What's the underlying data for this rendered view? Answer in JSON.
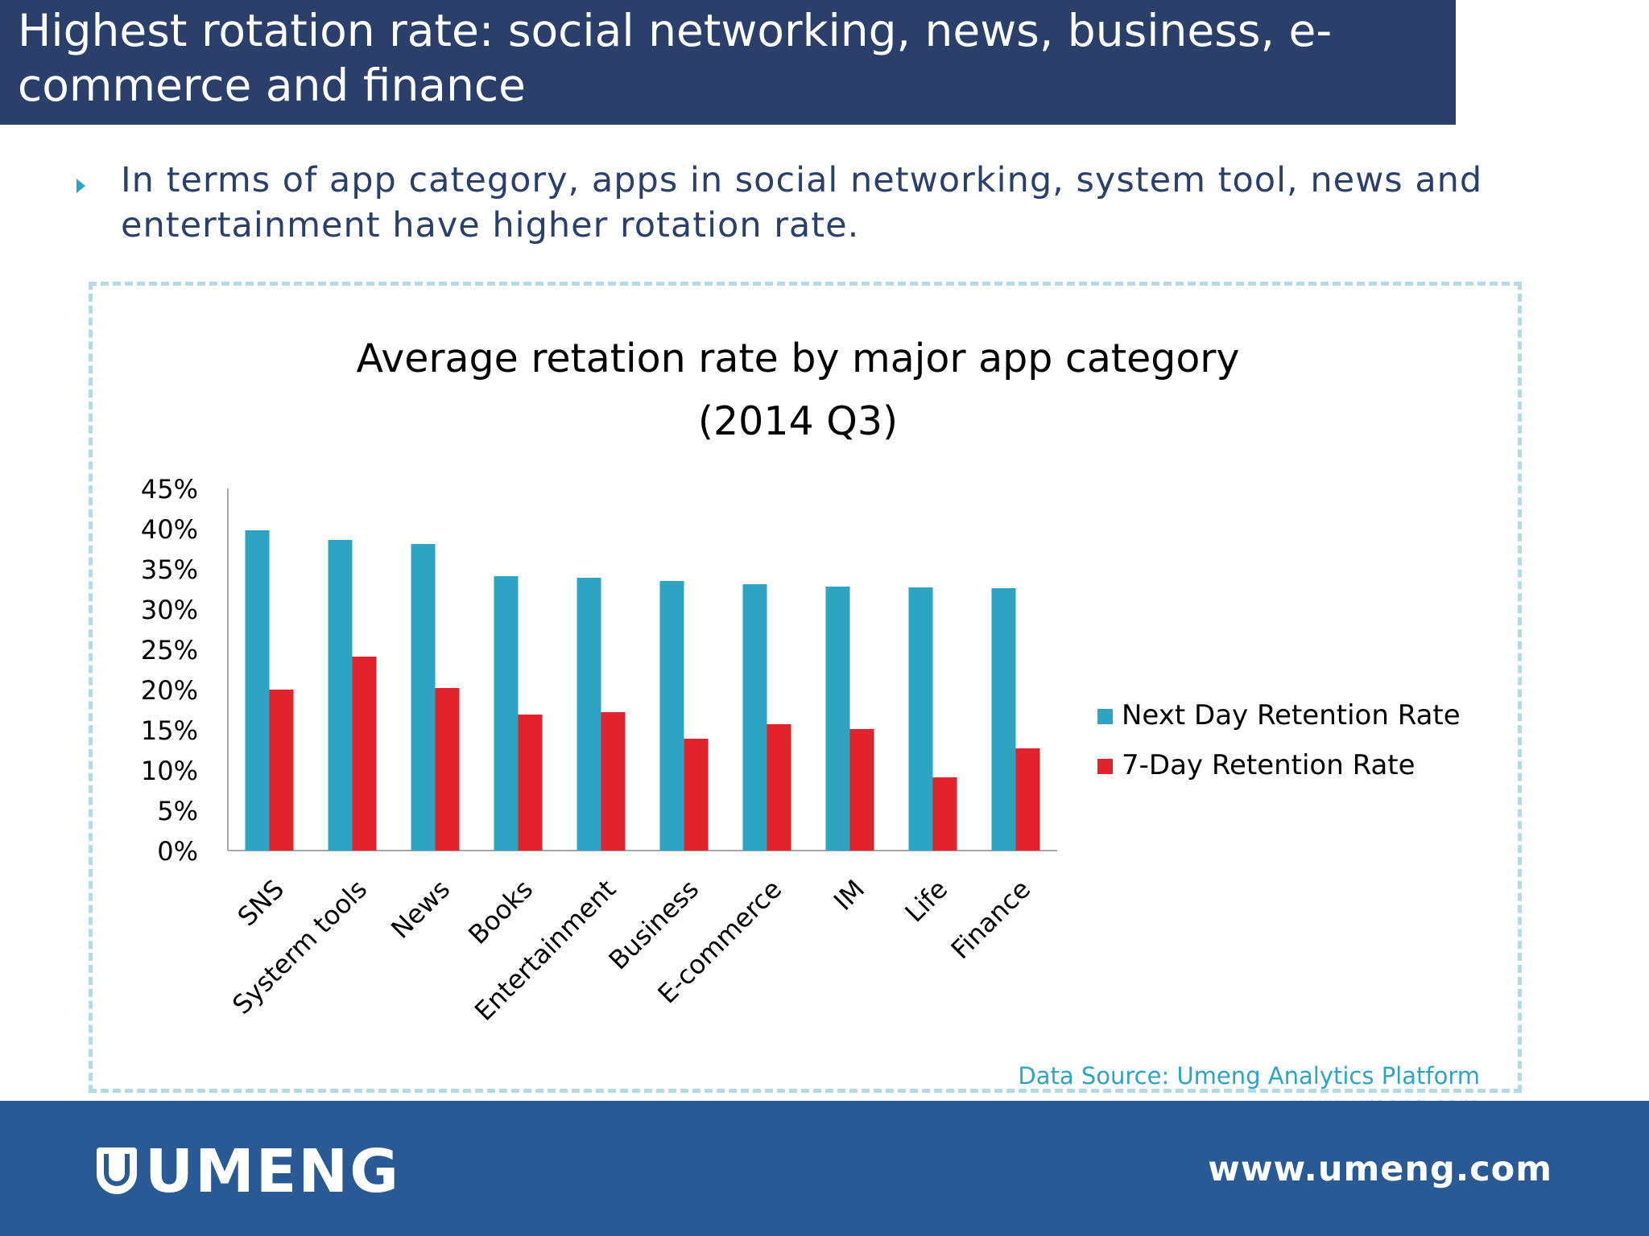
{
  "slide": {
    "title": "Highest rotation rate: social networking, news, business, e-commerce and finance",
    "bullet": "In terms of app category, apps in social networking, system tool, news and entertainment have higher rotation rate."
  },
  "source": {
    "line1": "Data Source: Umeng Analytics Platform",
    "line2": "www.umeng.com"
  },
  "footer": {
    "logo": "UMENG",
    "url": "www.umeng.com"
  },
  "colors": {
    "title_bar": "#2a3f6a",
    "footer_bar": "#2a5a96",
    "next_day": "#2fa4c2",
    "seven_day": "#e0232d",
    "frame": "#b2dbe7"
  },
  "chart_data": {
    "type": "bar",
    "title": "Average retation rate by major app category",
    "subtitle": "(2014 Q3)",
    "categories": [
      "SNS",
      "Systerm tools",
      "News",
      "Books",
      "Entertainment",
      "Business",
      "E-commerce",
      "IM",
      "Life",
      "Finance"
    ],
    "series": [
      {
        "name": "Next Day Retention Rate",
        "color": "#2fa4c2",
        "values": [
          39.8,
          38.6,
          38.1,
          34.1,
          33.9,
          33.5,
          33.1,
          32.8,
          32.7,
          32.6
        ]
      },
      {
        "name": "7-Day Retention Rate",
        "color": "#e0232d",
        "values": [
          20.0,
          24.1,
          20.2,
          16.9,
          17.2,
          13.9,
          15.7,
          15.1,
          9.1,
          12.7
        ]
      }
    ],
    "ylim": [
      0,
      45
    ],
    "yticks": [
      "0%",
      "5%",
      "10%",
      "15%",
      "20%",
      "25%",
      "30%",
      "35%",
      "40%",
      "45%"
    ],
    "legend": "right",
    "grid": false
  }
}
